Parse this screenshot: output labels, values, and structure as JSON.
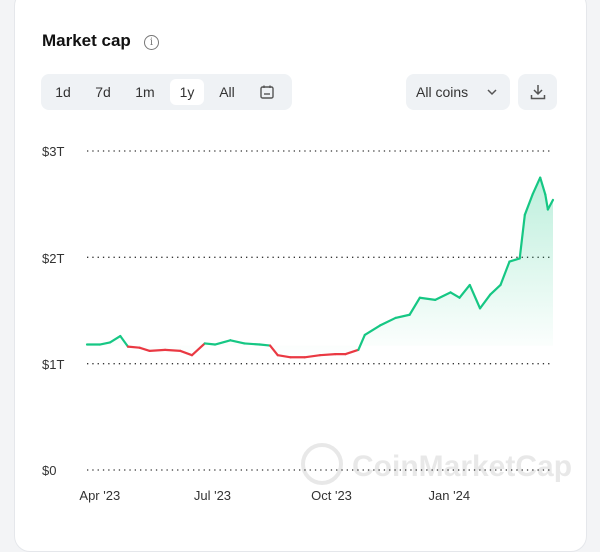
{
  "header": {
    "title": "Market cap"
  },
  "controls": {
    "ranges": [
      "1d",
      "7d",
      "1m",
      "1y",
      "All"
    ],
    "active_range": "1y",
    "coin_filter": "All coins"
  },
  "watermark": "CoinMarketCap",
  "chart_data": {
    "type": "line",
    "title": "Market cap",
    "xlabel": "",
    "ylabel": "",
    "ylim": [
      0,
      3
    ],
    "y_unit": "trillion USD",
    "y_ticks": [
      "$0",
      "$1T",
      "$2T",
      "$3T"
    ],
    "x_ticks": [
      {
        "day": 10,
        "label": "Apr '23"
      },
      {
        "day": 98,
        "label": "Jul '23"
      },
      {
        "day": 191,
        "label": "Oct '23"
      },
      {
        "day": 283,
        "label": "Jan '24"
      }
    ],
    "x_range_days": [
      0,
      364
    ],
    "baseline": 1.17,
    "colors": {
      "up": "#16c784",
      "down": "#ea3943"
    },
    "grid": "dotted horizontal",
    "series": [
      {
        "name": "Market cap",
        "x": [
          0,
          10,
          18,
          26,
          32,
          41,
          49,
          61,
          73,
          82,
          92,
          100,
          112,
          123,
          135,
          143,
          149,
          159,
          170,
          182,
          194,
          202,
          212,
          217,
          229,
          241,
          252,
          260,
          272,
          284,
          291,
          299,
          307,
          315,
          323,
          330,
          338,
          342,
          348,
          354,
          358,
          360,
          364
        ],
        "values": [
          1.18,
          1.18,
          1.2,
          1.26,
          1.16,
          1.15,
          1.12,
          1.13,
          1.12,
          1.08,
          1.19,
          1.18,
          1.22,
          1.19,
          1.18,
          1.17,
          1.08,
          1.06,
          1.06,
          1.08,
          1.09,
          1.09,
          1.13,
          1.27,
          1.36,
          1.43,
          1.46,
          1.62,
          1.6,
          1.67,
          1.62,
          1.74,
          1.52,
          1.65,
          1.74,
          1.96,
          1.99,
          2.4,
          2.59,
          2.75,
          2.59,
          2.45,
          2.54
        ]
      }
    ]
  }
}
